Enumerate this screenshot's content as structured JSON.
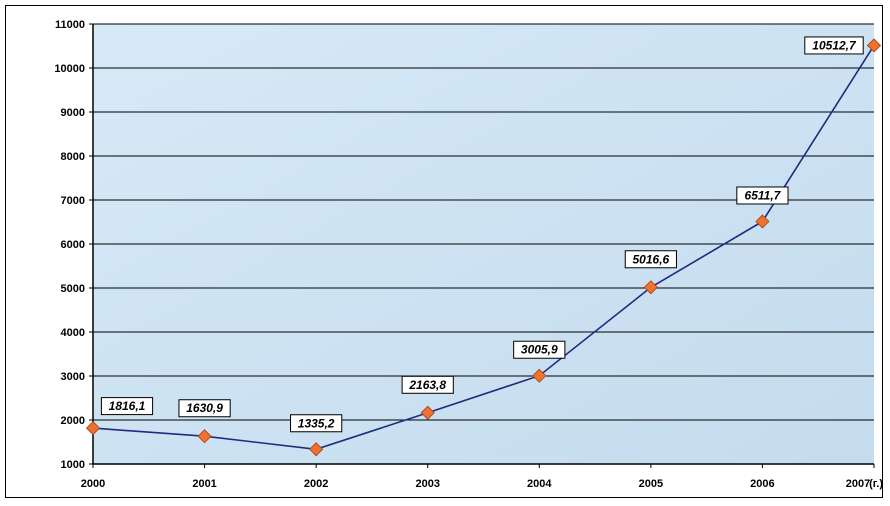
{
  "chart_data": {
    "type": "line",
    "categories": [
      "2000",
      "2001",
      "2002",
      "2003",
      "2004",
      "2005",
      "2006",
      "2007"
    ],
    "values": [
      1816.1,
      1630.9,
      1335.2,
      2163.8,
      3005.9,
      5016.6,
      6511.7,
      10512.7
    ],
    "value_labels": [
      "1816,1",
      "1630,9",
      "1335,2",
      "2163,8",
      "3005,9",
      "5016,6",
      "6511,7",
      "10512,7"
    ],
    "ylim": [
      1000,
      11000
    ],
    "yticks": [
      "1000",
      "2000",
      "3000",
      "4000",
      "5000",
      "6000",
      "7000",
      "8000",
      "9000",
      "10000",
      "11000"
    ],
    "x_unit": "(г.)",
    "grid": true,
    "colors": {
      "line": "#1f2a80",
      "marker": "#f07030",
      "marker_stroke": "#a04010",
      "plot_bg": "#cfe4f4",
      "grid": "#000000"
    }
  }
}
